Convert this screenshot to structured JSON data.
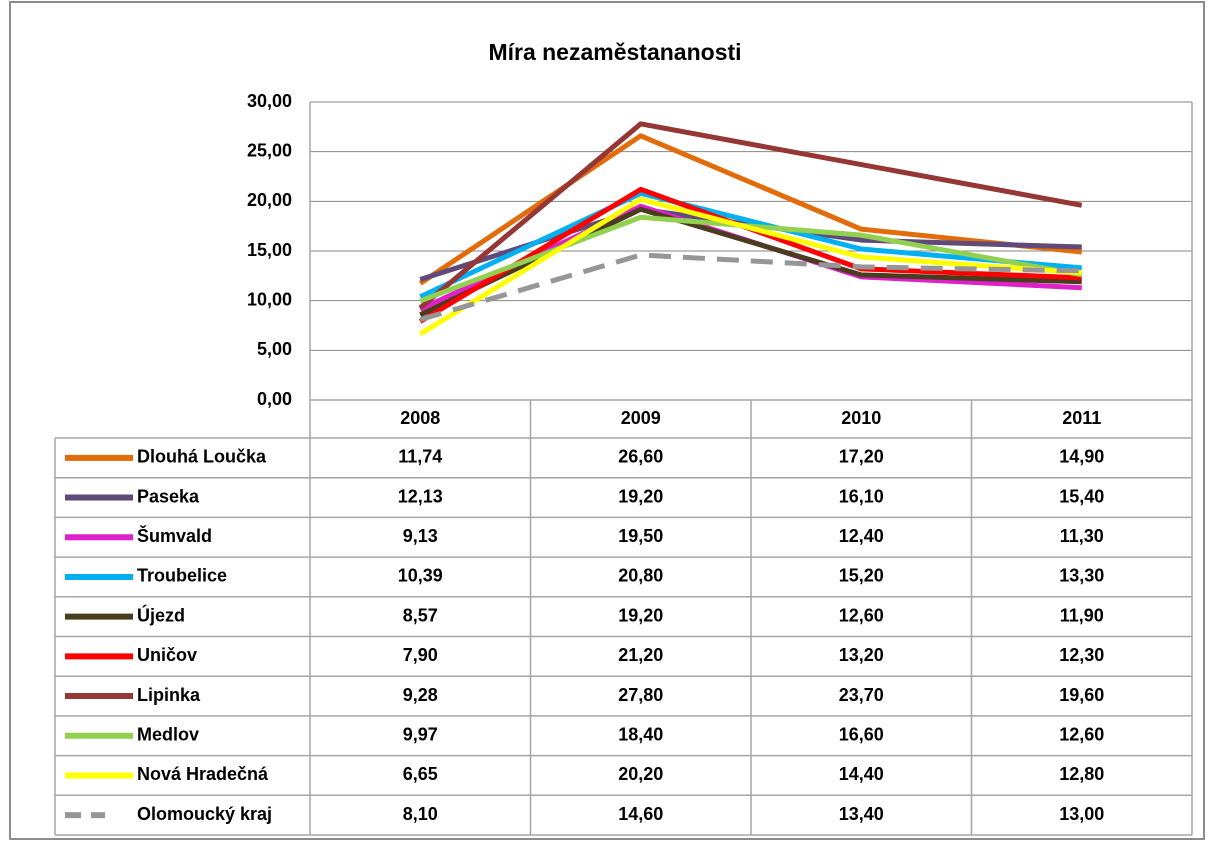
{
  "chart_data": {
    "type": "line",
    "title": "Míra nezaměstananosti",
    "categories": [
      "2008",
      "2009",
      "2010",
      "2011"
    ],
    "ylim": [
      0,
      30
    ],
    "yticks": [
      {
        "value": 0,
        "label": "0,00"
      },
      {
        "value": 5,
        "label": "5,00"
      },
      {
        "value": 10,
        "label": "10,00"
      },
      {
        "value": 15,
        "label": "15,00"
      },
      {
        "value": 20,
        "label": "20,00"
      },
      {
        "value": 25,
        "label": "25,00"
      },
      {
        "value": 30,
        "label": "30,00"
      }
    ],
    "grid": true,
    "series": [
      {
        "name": "Dlouhá Loučka",
        "color": "#e36c0a",
        "values": [
          11.74,
          26.6,
          17.2,
          14.9
        ],
        "value_labels": [
          "11,74",
          "26,60",
          "17,20",
          "14,90"
        ]
      },
      {
        "name": "Paseka",
        "color": "#604a7b",
        "values": [
          12.13,
          19.2,
          16.1,
          15.4
        ],
        "value_labels": [
          "12,13",
          "19,20",
          "16,10",
          "15,40"
        ]
      },
      {
        "name": "Šumvald",
        "color": "#e020c8",
        "values": [
          9.13,
          19.5,
          12.4,
          11.3
        ],
        "value_labels": [
          "9,13",
          "19,50",
          "12,40",
          "11,30"
        ]
      },
      {
        "name": "Troubelice",
        "color": "#00b0f0",
        "values": [
          10.39,
          20.8,
          15.2,
          13.3
        ],
        "value_labels": [
          "10,39",
          "20,80",
          "15,20",
          "13,30"
        ]
      },
      {
        "name": "Újezd",
        "color": "#4a3c1e",
        "values": [
          8.57,
          19.2,
          12.6,
          11.9
        ],
        "value_labels": [
          "8,57",
          "19,20",
          "12,60",
          "11,90"
        ]
      },
      {
        "name": "Uničov",
        "color": "#ff0000",
        "values": [
          7.9,
          21.2,
          13.2,
          12.3
        ],
        "value_labels": [
          "7,90",
          "21,20",
          "13,20",
          "12,30"
        ]
      },
      {
        "name": "Lipinka",
        "color": "#953735",
        "values": [
          9.28,
          27.8,
          23.7,
          19.6
        ],
        "value_labels": [
          "9,28",
          "27,80",
          "23,70",
          "19,60"
        ]
      },
      {
        "name": "Medlov",
        "color": "#92d050",
        "values": [
          9.97,
          18.4,
          16.6,
          12.6
        ],
        "value_labels": [
          "9,97",
          "18,40",
          "16,60",
          "12,60"
        ]
      },
      {
        "name": "Nová Hradečná",
        "color": "#ffff00",
        "values": [
          6.65,
          20.2,
          14.4,
          12.8
        ],
        "value_labels": [
          "6,65",
          "20,20",
          "14,40",
          "12,80"
        ]
      },
      {
        "name": "Olomoucký kraj",
        "color": "#969696",
        "line_style": "dashed",
        "values": [
          8.1,
          14.6,
          13.4,
          13.0
        ],
        "value_labels": [
          "8,10",
          "14,60",
          "13,40",
          "13,00"
        ]
      }
    ]
  }
}
